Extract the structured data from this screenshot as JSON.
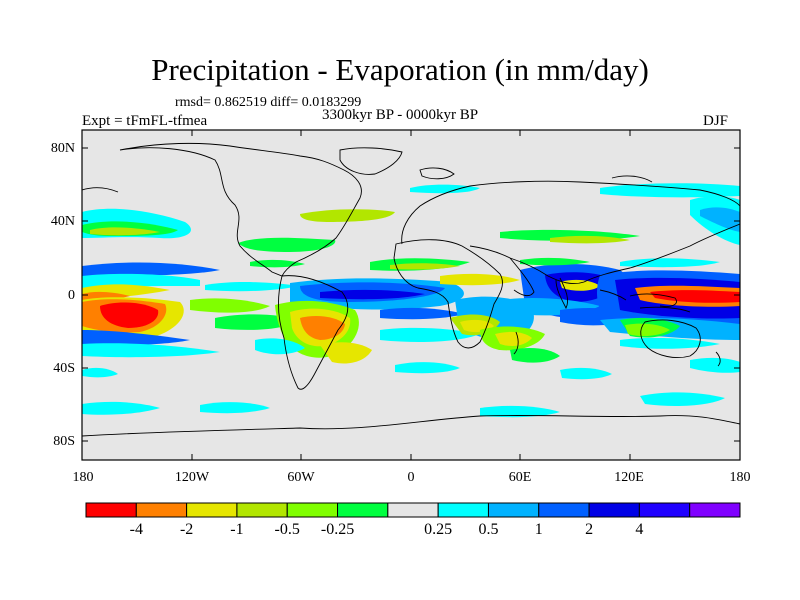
{
  "title": "Precipitation - Evaporation (in mm/day)",
  "stats": "rmsd= 0.862519 diff= 0.0183299",
  "period": "3300kyr BP - 0000kyr BP",
  "experiment": "Expt = tFmFL-tfmea",
  "season": "DJF",
  "latitude_labels": [
    "80N",
    "40N",
    "0",
    "40S",
    "80S"
  ],
  "longitude_labels": [
    "180",
    "120W",
    "60W",
    "0",
    "60E",
    "120E",
    "180"
  ],
  "colorbar": {
    "colors": [
      "#ff0000",
      "#ff8000",
      "#e6e600",
      "#b2e600",
      "#80ff00",
      "#00ff40",
      "#e6e6e6",
      "#00ffff",
      "#00b2ff",
      "#0060ff",
      "#0000e6",
      "#2000ff",
      "#8000ff"
    ],
    "labels": [
      "-4",
      "-2",
      "-1",
      "-0.5",
      "-0.25",
      "0.25",
      "0.5",
      "1",
      "2",
      "4"
    ]
  }
}
